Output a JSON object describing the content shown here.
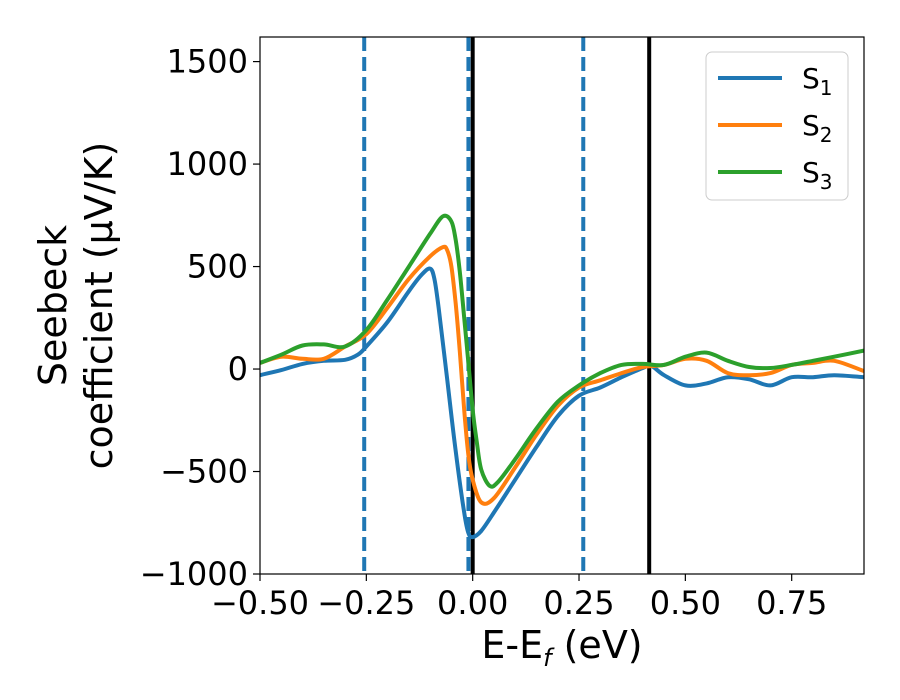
{
  "chart_data": {
    "type": "line",
    "xlabel": "E-E",
    "xlabel_sub": "f",
    "xlabel_unit": " (eV)",
    "ylabel_line1": "Seebeck",
    "ylabel_line2": "coefficient  (μV/K)",
    "xlim": [
      -0.5,
      0.92
    ],
    "ylim": [
      -1000,
      1620
    ],
    "xticks": [
      -0.5,
      -0.25,
      0.0,
      0.25,
      0.5,
      0.75
    ],
    "xtick_labels": [
      "−0.50",
      "−0.25",
      "0.00",
      "0.25",
      "0.50",
      "0.75"
    ],
    "yticks": [
      -1000,
      -500,
      0,
      500,
      1000,
      1500
    ],
    "ytick_labels": [
      "−1000",
      "−500",
      "0",
      "500",
      "1000",
      "1500"
    ],
    "grid": false,
    "legend_position": "top-right",
    "vlines_dashed": [
      -0.255,
      -0.01,
      0.26
    ],
    "vlines_solid": [
      0.0,
      0.415
    ],
    "colors": {
      "S1": "#1f77b4",
      "S2": "#ff7f0e",
      "S3": "#2ca02c",
      "vline": "#000000",
      "dashed": "#1f77b4"
    },
    "series": [
      {
        "name": "S",
        "sub": "1",
        "color": "#1f77b4",
        "x": [
          -0.5,
          -0.45,
          -0.4,
          -0.35,
          -0.3,
          -0.27,
          -0.25,
          -0.2,
          -0.15,
          -0.12,
          -0.1,
          -0.09,
          -0.08,
          -0.06,
          -0.04,
          -0.02,
          -0.01,
          0.0,
          0.02,
          0.05,
          0.1,
          0.15,
          0.2,
          0.25,
          0.3,
          0.35,
          0.4,
          0.42,
          0.45,
          0.5,
          0.55,
          0.6,
          0.65,
          0.7,
          0.75,
          0.8,
          0.85,
          0.92
        ],
        "y": [
          -30,
          -5,
          25,
          40,
          45,
          70,
          110,
          230,
          380,
          460,
          490,
          440,
          300,
          -50,
          -400,
          -700,
          -800,
          -820,
          -790,
          -700,
          -540,
          -380,
          -230,
          -130,
          -90,
          -40,
          5,
          15,
          -30,
          -80,
          -70,
          -40,
          -50,
          -80,
          -40,
          -40,
          -30,
          -40
        ]
      },
      {
        "name": "S",
        "sub": "2",
        "color": "#ff7f0e",
        "x": [
          -0.5,
          -0.45,
          -0.4,
          -0.35,
          -0.3,
          -0.25,
          -0.2,
          -0.15,
          -0.1,
          -0.07,
          -0.06,
          -0.05,
          -0.04,
          -0.03,
          -0.02,
          -0.01,
          0.0,
          0.02,
          0.05,
          0.1,
          0.15,
          0.2,
          0.25,
          0.3,
          0.35,
          0.4,
          0.45,
          0.5,
          0.55,
          0.6,
          0.65,
          0.7,
          0.75,
          0.8,
          0.85,
          0.92
        ],
        "y": [
          30,
          60,
          50,
          50,
          110,
          170,
          300,
          440,
          550,
          595,
          580,
          500,
          320,
          80,
          -200,
          -420,
          -540,
          -650,
          -630,
          -480,
          -320,
          -180,
          -90,
          -55,
          -20,
          10,
          20,
          50,
          40,
          -20,
          -30,
          -20,
          20,
          30,
          40,
          -10
        ]
      },
      {
        "name": "S",
        "sub": "3",
        "color": "#2ca02c",
        "x": [
          -0.5,
          -0.45,
          -0.4,
          -0.35,
          -0.3,
          -0.25,
          -0.2,
          -0.15,
          -0.1,
          -0.07,
          -0.05,
          -0.04,
          -0.03,
          -0.02,
          -0.01,
          0.0,
          0.01,
          0.02,
          0.04,
          0.06,
          0.1,
          0.15,
          0.2,
          0.25,
          0.3,
          0.35,
          0.4,
          0.45,
          0.5,
          0.55,
          0.6,
          0.65,
          0.7,
          0.75,
          0.8,
          0.85,
          0.92
        ],
        "y": [
          30,
          70,
          115,
          120,
          110,
          190,
          340,
          500,
          660,
          745,
          720,
          630,
          470,
          250,
          30,
          -200,
          -360,
          -490,
          -570,
          -550,
          -440,
          -290,
          -160,
          -80,
          -20,
          20,
          25,
          20,
          60,
          80,
          40,
          10,
          5,
          20,
          40,
          60,
          90
        ]
      }
    ]
  }
}
